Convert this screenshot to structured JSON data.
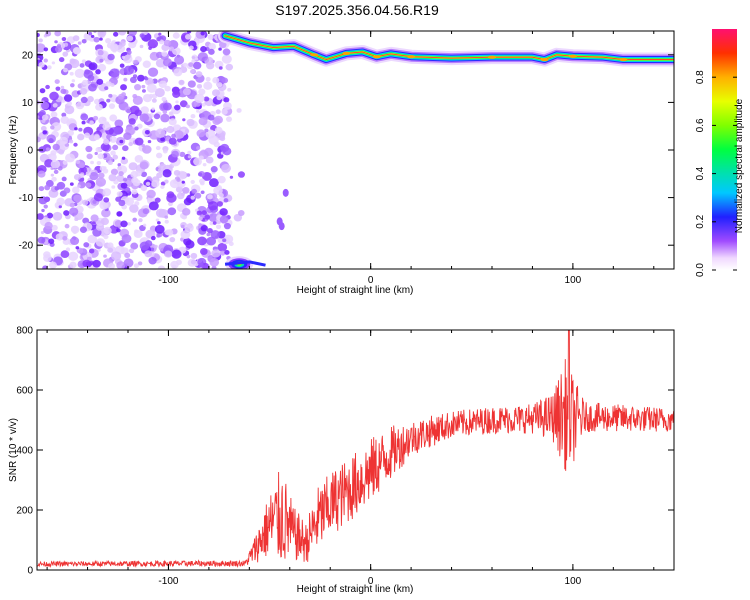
{
  "title": "S197.2025.356.04.56.R19",
  "chart_data": [
    {
      "type": "heatmap",
      "xlabel": "Height of straight line (km)",
      "ylabel": "Frequency (Hz)",
      "xlim": [
        -165,
        150
      ],
      "ylim": [
        -25,
        25
      ],
      "xticks": [
        -100,
        0,
        100
      ],
      "yticks": [
        -20,
        -10,
        0,
        10,
        20
      ],
      "xtick_labels": [
        "-100",
        "0",
        "100"
      ],
      "ytick_labels": [
        "-20",
        "-10",
        "0",
        "10",
        "20"
      ],
      "noise_region_x": [
        -165,
        -70
      ],
      "ridge": [
        {
          "x": -72,
          "y": 24.0
        },
        {
          "x": -60,
          "y": 22.5
        },
        {
          "x": -48,
          "y": 21.5
        },
        {
          "x": -38,
          "y": 21.8
        },
        {
          "x": -28,
          "y": 20.0
        },
        {
          "x": -22,
          "y": 19.0
        },
        {
          "x": -12,
          "y": 20.3
        },
        {
          "x": -4,
          "y": 20.6
        },
        {
          "x": 3,
          "y": 19.6
        },
        {
          "x": 10,
          "y": 20.2
        },
        {
          "x": 20,
          "y": 19.6
        },
        {
          "x": 40,
          "y": 19.3
        },
        {
          "x": 60,
          "y": 19.5
        },
        {
          "x": 80,
          "y": 19.5
        },
        {
          "x": 86,
          "y": 19.0
        },
        {
          "x": 92,
          "y": 20.0
        },
        {
          "x": 100,
          "y": 19.7
        },
        {
          "x": 115,
          "y": 19.5
        },
        {
          "x": 125,
          "y": 19.0
        },
        {
          "x": 150,
          "y": 19.0
        }
      ],
      "lower_blob": {
        "x": -65,
        "y": -24
      },
      "colorbar": {
        "label": "Normalized spectral amplitude",
        "range": [
          0,
          1
        ],
        "ticks": [
          0.0,
          0.2,
          0.4,
          0.6,
          0.8
        ],
        "tick_labels": [
          "0.0",
          "0.2",
          "0.4",
          "0.6",
          "0.8"
        ]
      }
    },
    {
      "type": "line",
      "xlabel": "Height of straight line (km)",
      "ylabel": "SNR (10 * v/v)",
      "xlim": [
        -165,
        150
      ],
      "ylim": [
        0,
        800
      ],
      "xticks": [
        -100,
        0,
        100
      ],
      "yticks": [
        0,
        200,
        400,
        600,
        800
      ],
      "xtick_labels": [
        "-100",
        "0",
        "100"
      ],
      "ytick_labels": [
        "0",
        "200",
        "400",
        "600",
        "800"
      ],
      "color": "#ee3333",
      "envelope": [
        {
          "x": -165,
          "mean": 20,
          "amp": 8
        },
        {
          "x": -62,
          "mean": 22,
          "amp": 10
        },
        {
          "x": -58,
          "mean": 60,
          "amp": 40
        },
        {
          "x": -50,
          "mean": 150,
          "amp": 110
        },
        {
          "x": -44,
          "mean": 180,
          "amp": 170
        },
        {
          "x": -38,
          "mean": 120,
          "amp": 90
        },
        {
          "x": -32,
          "mean": 90,
          "amp": 70
        },
        {
          "x": -26,
          "mean": 170,
          "amp": 110
        },
        {
          "x": -18,
          "mean": 230,
          "amp": 110
        },
        {
          "x": -10,
          "mean": 270,
          "amp": 110
        },
        {
          "x": 0,
          "mean": 330,
          "amp": 110
        },
        {
          "x": 10,
          "mean": 390,
          "amp": 90
        },
        {
          "x": 20,
          "mean": 440,
          "amp": 60
        },
        {
          "x": 40,
          "mean": 485,
          "amp": 45
        },
        {
          "x": 60,
          "mean": 500,
          "amp": 45
        },
        {
          "x": 80,
          "mean": 505,
          "amp": 50
        },
        {
          "x": 90,
          "mean": 510,
          "amp": 80
        },
        {
          "x": 97,
          "mean": 520,
          "amp": 200
        },
        {
          "x": 100,
          "mean": 500,
          "amp": 150
        },
        {
          "x": 106,
          "mean": 510,
          "amp": 50
        },
        {
          "x": 150,
          "mean": 500,
          "amp": 40
        }
      ],
      "spike": {
        "x": 98,
        "y": 810
      }
    }
  ]
}
